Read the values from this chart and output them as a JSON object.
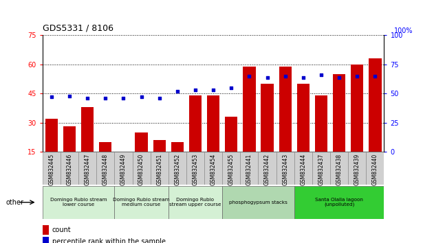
{
  "title": "GDS5331 / 8106",
  "samples": [
    "GSM832445",
    "GSM832446",
    "GSM832447",
    "GSM832448",
    "GSM832449",
    "GSM832450",
    "GSM832451",
    "GSM832452",
    "GSM832453",
    "GSM832454",
    "GSM832455",
    "GSM832441",
    "GSM832442",
    "GSM832443",
    "GSM832444",
    "GSM832437",
    "GSM832438",
    "GSM832439",
    "GSM832440"
  ],
  "counts": [
    32,
    28,
    38,
    20,
    15,
    25,
    21,
    20,
    44,
    44,
    33,
    59,
    50,
    59,
    50,
    44,
    55,
    60,
    63
  ],
  "percentiles": [
    47,
    48,
    46,
    46,
    46,
    47,
    46,
    52,
    53,
    53,
    55,
    65,
    64,
    65,
    64,
    66,
    64,
    65,
    65
  ],
  "ylim_left": [
    15,
    75
  ],
  "ylim_right": [
    0,
    100
  ],
  "yticks_left": [
    15,
    30,
    45,
    60,
    75
  ],
  "yticks_right": [
    0,
    25,
    50,
    75,
    100
  ],
  "bar_color": "#cc0000",
  "dot_color": "#0000cc",
  "group_colors": [
    "#d4f0d4",
    "#d4f0d4",
    "#d4f0d4",
    "#b0d8b0",
    "#33cc33"
  ],
  "groups": [
    {
      "label": "Domingo Rubio stream\nlower course",
      "start": 0,
      "end": 3
    },
    {
      "label": "Domingo Rubio stream\nmedium course",
      "start": 4,
      "end": 6
    },
    {
      "label": "Domingo Rubio\nstream upper course",
      "start": 7,
      "end": 9
    },
    {
      "label": "phosphogypsum stacks",
      "start": 10,
      "end": 13
    },
    {
      "label": "Santa Olalla lagoon\n(unpolluted)",
      "start": 14,
      "end": 18
    }
  ],
  "other_label": "other",
  "legend_count": "count",
  "legend_pct": "percentile rank within the sample",
  "right_axis_top_label": "100%"
}
